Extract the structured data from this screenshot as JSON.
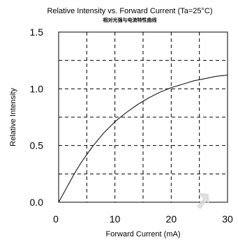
{
  "chart_data": {
    "type": "line",
    "title": "Relative Intensity vs. Forward Current (Ta=25°C)",
    "subtitle": "相对光强与电流特性曲线",
    "xlabel": "Forward Current (mA)",
    "ylabel": "Relative Intensity",
    "xlim": [
      0,
      30
    ],
    "ylim": [
      0,
      1.5
    ],
    "x_ticks": [
      "0",
      "10",
      "20",
      "30"
    ],
    "y_ticks": [
      "0.0",
      "0.5",
      "1.0",
      "1.5"
    ],
    "grid": true,
    "series": [
      {
        "x": [
          0,
          1,
          2,
          3,
          4,
          5,
          6,
          8,
          10,
          12,
          14,
          16,
          18,
          20,
          22,
          24,
          26,
          28,
          30
        ],
        "values": [
          0,
          0.09,
          0.18,
          0.27,
          0.35,
          0.42,
          0.49,
          0.61,
          0.71,
          0.79,
          0.86,
          0.92,
          0.97,
          1.01,
          1.04,
          1.07,
          1.09,
          1.11,
          1.12
        ]
      }
    ]
  }
}
